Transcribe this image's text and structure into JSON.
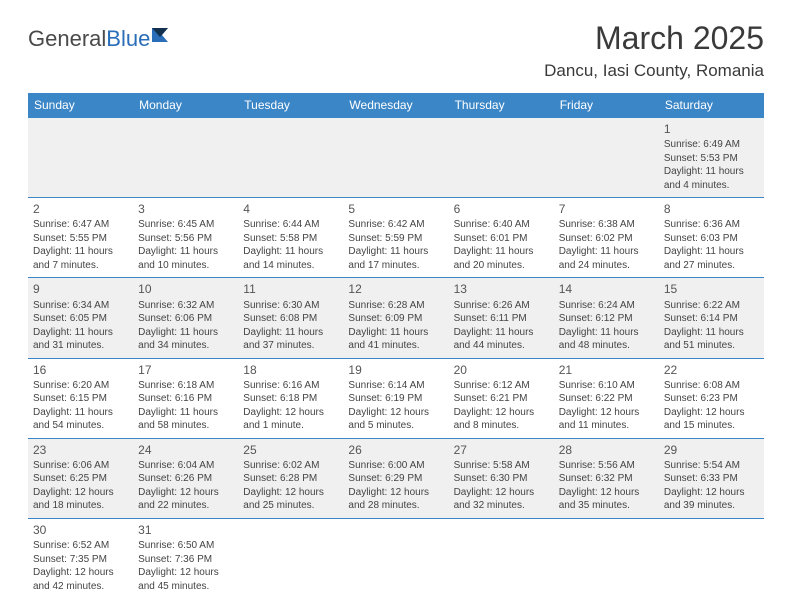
{
  "logo": {
    "part1": "General",
    "part2": "Blue"
  },
  "title": "March 2025",
  "location": "Dancu, Iasi County, Romania",
  "colors": {
    "header_bg": "#3b86c7",
    "header_fg": "#ffffff",
    "row_alt": "#f0f0f0",
    "border": "#3b86c7",
    "logo_blue": "#2a6db8",
    "text": "#333333"
  },
  "fonts": {
    "title_size": 32,
    "location_size": 17,
    "dayhead_size": 12,
    "cell_size": 10,
    "daynum_size": 12
  },
  "day_headers": [
    "Sunday",
    "Monday",
    "Tuesday",
    "Wednesday",
    "Thursday",
    "Friday",
    "Saturday"
  ],
  "weeks": [
    [
      null,
      null,
      null,
      null,
      null,
      null,
      {
        "n": "1",
        "sr": "Sunrise: 6:49 AM",
        "ss": "Sunset: 5:53 PM",
        "d1": "Daylight: 11 hours",
        "d2": "and 4 minutes."
      }
    ],
    [
      {
        "n": "2",
        "sr": "Sunrise: 6:47 AM",
        "ss": "Sunset: 5:55 PM",
        "d1": "Daylight: 11 hours",
        "d2": "and 7 minutes."
      },
      {
        "n": "3",
        "sr": "Sunrise: 6:45 AM",
        "ss": "Sunset: 5:56 PM",
        "d1": "Daylight: 11 hours",
        "d2": "and 10 minutes."
      },
      {
        "n": "4",
        "sr": "Sunrise: 6:44 AM",
        "ss": "Sunset: 5:58 PM",
        "d1": "Daylight: 11 hours",
        "d2": "and 14 minutes."
      },
      {
        "n": "5",
        "sr": "Sunrise: 6:42 AM",
        "ss": "Sunset: 5:59 PM",
        "d1": "Daylight: 11 hours",
        "d2": "and 17 minutes."
      },
      {
        "n": "6",
        "sr": "Sunrise: 6:40 AM",
        "ss": "Sunset: 6:01 PM",
        "d1": "Daylight: 11 hours",
        "d2": "and 20 minutes."
      },
      {
        "n": "7",
        "sr": "Sunrise: 6:38 AM",
        "ss": "Sunset: 6:02 PM",
        "d1": "Daylight: 11 hours",
        "d2": "and 24 minutes."
      },
      {
        "n": "8",
        "sr": "Sunrise: 6:36 AM",
        "ss": "Sunset: 6:03 PM",
        "d1": "Daylight: 11 hours",
        "d2": "and 27 minutes."
      }
    ],
    [
      {
        "n": "9",
        "sr": "Sunrise: 6:34 AM",
        "ss": "Sunset: 6:05 PM",
        "d1": "Daylight: 11 hours",
        "d2": "and 31 minutes."
      },
      {
        "n": "10",
        "sr": "Sunrise: 6:32 AM",
        "ss": "Sunset: 6:06 PM",
        "d1": "Daylight: 11 hours",
        "d2": "and 34 minutes."
      },
      {
        "n": "11",
        "sr": "Sunrise: 6:30 AM",
        "ss": "Sunset: 6:08 PM",
        "d1": "Daylight: 11 hours",
        "d2": "and 37 minutes."
      },
      {
        "n": "12",
        "sr": "Sunrise: 6:28 AM",
        "ss": "Sunset: 6:09 PM",
        "d1": "Daylight: 11 hours",
        "d2": "and 41 minutes."
      },
      {
        "n": "13",
        "sr": "Sunrise: 6:26 AM",
        "ss": "Sunset: 6:11 PM",
        "d1": "Daylight: 11 hours",
        "d2": "and 44 minutes."
      },
      {
        "n": "14",
        "sr": "Sunrise: 6:24 AM",
        "ss": "Sunset: 6:12 PM",
        "d1": "Daylight: 11 hours",
        "d2": "and 48 minutes."
      },
      {
        "n": "15",
        "sr": "Sunrise: 6:22 AM",
        "ss": "Sunset: 6:14 PM",
        "d1": "Daylight: 11 hours",
        "d2": "and 51 minutes."
      }
    ],
    [
      {
        "n": "16",
        "sr": "Sunrise: 6:20 AM",
        "ss": "Sunset: 6:15 PM",
        "d1": "Daylight: 11 hours",
        "d2": "and 54 minutes."
      },
      {
        "n": "17",
        "sr": "Sunrise: 6:18 AM",
        "ss": "Sunset: 6:16 PM",
        "d1": "Daylight: 11 hours",
        "d2": "and 58 minutes."
      },
      {
        "n": "18",
        "sr": "Sunrise: 6:16 AM",
        "ss": "Sunset: 6:18 PM",
        "d1": "Daylight: 12 hours",
        "d2": "and 1 minute."
      },
      {
        "n": "19",
        "sr": "Sunrise: 6:14 AM",
        "ss": "Sunset: 6:19 PM",
        "d1": "Daylight: 12 hours",
        "d2": "and 5 minutes."
      },
      {
        "n": "20",
        "sr": "Sunrise: 6:12 AM",
        "ss": "Sunset: 6:21 PM",
        "d1": "Daylight: 12 hours",
        "d2": "and 8 minutes."
      },
      {
        "n": "21",
        "sr": "Sunrise: 6:10 AM",
        "ss": "Sunset: 6:22 PM",
        "d1": "Daylight: 12 hours",
        "d2": "and 11 minutes."
      },
      {
        "n": "22",
        "sr": "Sunrise: 6:08 AM",
        "ss": "Sunset: 6:23 PM",
        "d1": "Daylight: 12 hours",
        "d2": "and 15 minutes."
      }
    ],
    [
      {
        "n": "23",
        "sr": "Sunrise: 6:06 AM",
        "ss": "Sunset: 6:25 PM",
        "d1": "Daylight: 12 hours",
        "d2": "and 18 minutes."
      },
      {
        "n": "24",
        "sr": "Sunrise: 6:04 AM",
        "ss": "Sunset: 6:26 PM",
        "d1": "Daylight: 12 hours",
        "d2": "and 22 minutes."
      },
      {
        "n": "25",
        "sr": "Sunrise: 6:02 AM",
        "ss": "Sunset: 6:28 PM",
        "d1": "Daylight: 12 hours",
        "d2": "and 25 minutes."
      },
      {
        "n": "26",
        "sr": "Sunrise: 6:00 AM",
        "ss": "Sunset: 6:29 PM",
        "d1": "Daylight: 12 hours",
        "d2": "and 28 minutes."
      },
      {
        "n": "27",
        "sr": "Sunrise: 5:58 AM",
        "ss": "Sunset: 6:30 PM",
        "d1": "Daylight: 12 hours",
        "d2": "and 32 minutes."
      },
      {
        "n": "28",
        "sr": "Sunrise: 5:56 AM",
        "ss": "Sunset: 6:32 PM",
        "d1": "Daylight: 12 hours",
        "d2": "and 35 minutes."
      },
      {
        "n": "29",
        "sr": "Sunrise: 5:54 AM",
        "ss": "Sunset: 6:33 PM",
        "d1": "Daylight: 12 hours",
        "d2": "and 39 minutes."
      }
    ],
    [
      {
        "n": "30",
        "sr": "Sunrise: 6:52 AM",
        "ss": "Sunset: 7:35 PM",
        "d1": "Daylight: 12 hours",
        "d2": "and 42 minutes."
      },
      {
        "n": "31",
        "sr": "Sunrise: 6:50 AM",
        "ss": "Sunset: 7:36 PM",
        "d1": "Daylight: 12 hours",
        "d2": "and 45 minutes."
      },
      null,
      null,
      null,
      null,
      null
    ]
  ]
}
